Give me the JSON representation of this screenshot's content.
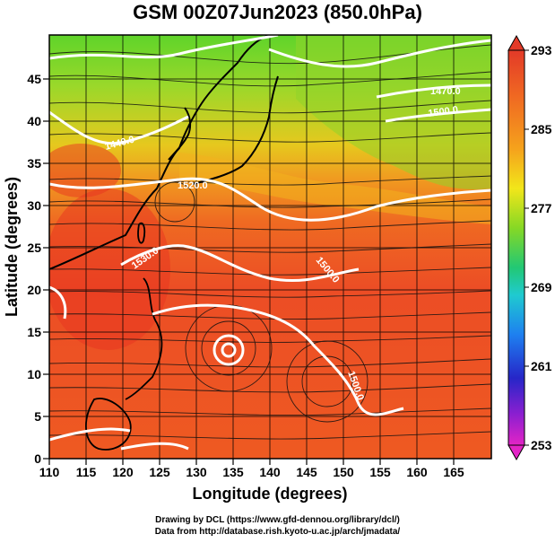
{
  "title": "GSM 00Z07Jun2023 (850.0hPa)",
  "colorbar": {
    "labels": [
      "293",
      "285",
      "277",
      "269",
      "261",
      "253"
    ],
    "colors": [
      "#e53b28",
      "#f08a1c",
      "#f7e11a",
      "#8bdc25",
      "#25c85a",
      "#22c8c8",
      "#1e7df0",
      "#2f2fd0",
      "#7a1fd0",
      "#d421c8"
    ]
  },
  "contour_labels": [
    "1440.0",
    "1470.0",
    "1500.0",
    "1520.0",
    "1530.0",
    "1500.0",
    "1500.0"
  ],
  "chart_data": {
    "type": "map",
    "title": "GSM 00Z07Jun2023 (850.0hPa)",
    "xlabel": "Longitude (degrees)",
    "ylabel": "Latitude  (degrees)",
    "xticks": [
      110,
      115,
      120,
      125,
      130,
      135,
      140,
      145,
      150,
      155,
      160,
      165
    ],
    "yticks": [
      0,
      5,
      10,
      15,
      20,
      25,
      30,
      35,
      40,
      45
    ],
    "xlim": [
      110,
      170
    ],
    "ylim": [
      0,
      50
    ],
    "colorbar_range": [
      253,
      293
    ],
    "variable_colors": "temperature (K)",
    "grid": true
  },
  "credits": {
    "line1": "Drawing by DCL (https://www.gfd-dennou.org/library/dcl/)",
    "line2": "Data from http://database.rish.kyoto-u.ac.jp/arch/jmadata/"
  }
}
